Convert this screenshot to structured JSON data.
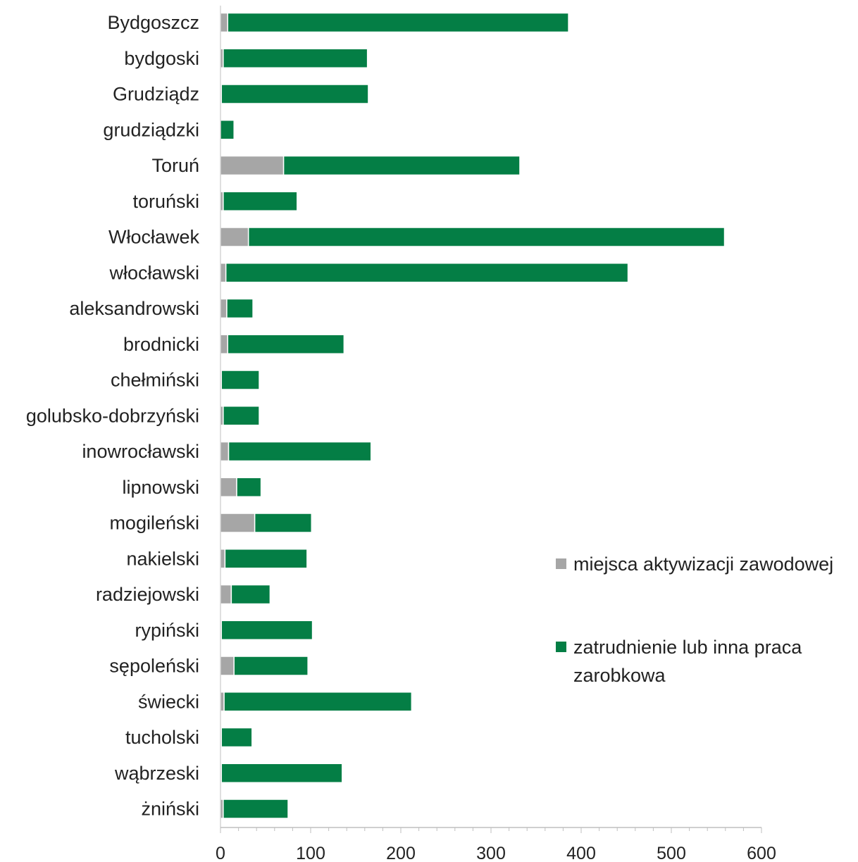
{
  "chart_data": {
    "type": "bar",
    "orientation": "horizontal",
    "stacked": true,
    "categories": [
      "Bydgoszcz",
      "bydgoski",
      "Grudziądz",
      "grudziądzki",
      "Toruń",
      "toruński",
      "Włocławek",
      "włocławski",
      "aleksandrowski",
      "brodnicki",
      "chełmiński",
      "golubsko-dobrzyński",
      "inowrocławski",
      "lipnowski",
      "mogileński",
      "nakielski",
      "radziejowski",
      "rypiński",
      "sępoleński",
      "świecki",
      "tucholski",
      "wąbrzeski",
      "żniński"
    ],
    "series": [
      {
        "name": "miejsca aktywizacji zawodowej",
        "color": "#a6a6a6",
        "values": [
          8,
          3,
          1,
          0,
          70,
          3,
          31,
          6,
          7,
          8,
          1,
          3,
          9,
          18,
          38,
          5,
          12,
          1,
          15,
          4,
          1,
          1,
          3
        ]
      },
      {
        "name": "zatrudnienie lub inna praca zarobkowa",
        "color": "#047e45",
        "values": [
          378,
          160,
          163,
          15,
          262,
          82,
          528,
          446,
          29,
          129,
          42,
          40,
          158,
          27,
          63,
          91,
          43,
          101,
          82,
          208,
          34,
          134,
          72
        ]
      }
    ],
    "xlim": [
      0,
      600
    ],
    "xticks": [
      "0",
      "100",
      "200",
      "300",
      "400",
      "500",
      "600"
    ],
    "grid": false,
    "legend": "right",
    "title": "",
    "xlabel": "",
    "ylabel": ""
  }
}
